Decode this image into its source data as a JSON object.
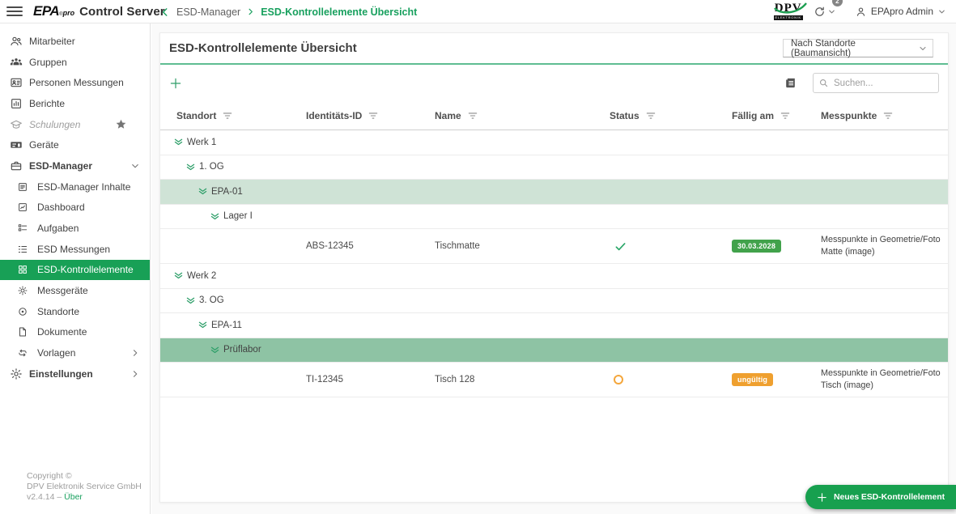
{
  "header": {
    "menu_icon": "hamburger-icon",
    "logo": {
      "text": "EPA",
      "mark": "®",
      "sub": "pro"
    },
    "app_title": "Control Server",
    "breadcrumb": {
      "back_icon": "chevron-left-icon",
      "items": [
        {
          "label": "ESD-Manager",
          "active": false
        },
        {
          "label": "ESD-Kontrollelemente Übersicht",
          "active": true
        }
      ]
    },
    "brand_logo": {
      "text": "DPV",
      "sub": "ELEKTRONIK"
    },
    "sync_icon": "sync-icon",
    "notifications_count": "2",
    "user_icon": "person-icon",
    "user_name": "EPApro Admin"
  },
  "sidebar": {
    "items": [
      {
        "label": "Mitarbeiter",
        "icon": "people-icon",
        "level": 0
      },
      {
        "label": "Gruppen",
        "icon": "groups-icon",
        "level": 0
      },
      {
        "label": "Personen Messungen",
        "icon": "person-card-icon",
        "level": 0
      },
      {
        "label": "Berichte",
        "icon": "report-chart-icon",
        "level": 0
      },
      {
        "label": "Schulungen",
        "icon": "graduation-cap-icon",
        "level": 0,
        "disabled": true,
        "trailing": "star-icon"
      },
      {
        "label": "Geräte",
        "icon": "device-icon",
        "level": 0
      },
      {
        "label": "ESD-Manager",
        "icon": "briefcase-icon",
        "level": 0,
        "bold": true,
        "trailing": "chevron-down-icon"
      },
      {
        "label": "ESD-Manager Inhalte",
        "icon": "article-icon",
        "level": 1
      },
      {
        "label": "Dashboard",
        "icon": "dashboard-icon",
        "level": 1
      },
      {
        "label": "Aufgaben",
        "icon": "tasks-icon",
        "level": 1
      },
      {
        "label": "ESD Messungen",
        "icon": "numbered-list-icon",
        "level": 1
      },
      {
        "label": "ESD-Kontrollelemente",
        "icon": "grid-icon",
        "level": 1,
        "selected": true
      },
      {
        "label": "Messgeräte",
        "icon": "gauge-icon",
        "level": 1
      },
      {
        "label": "Standorte",
        "icon": "target-icon",
        "level": 1
      },
      {
        "label": "Dokumente",
        "icon": "document-icon",
        "level": 1
      },
      {
        "label": "Vorlagen",
        "icon": "repeat-icon",
        "level": 1,
        "trailing": "chevron-right-icon"
      },
      {
        "label": "Einstellungen",
        "icon": "gear-icon",
        "level": 0,
        "bold": true,
        "trailing": "chevron-right-icon"
      }
    ],
    "footer": {
      "line1": "Copyright ©",
      "line2": "DPV Elektronik Service GmbH",
      "version": "v2.4.14",
      "separator": "–",
      "about_link": "Über"
    }
  },
  "main": {
    "title": "ESD-Kontrollelemente Übersicht",
    "view_select": {
      "value": "Nach Standorte (Baumansicht)",
      "icon": "chevron-down-icon"
    },
    "toolbar": {
      "add_icon": "plus-icon",
      "view_icon": "newspaper-icon",
      "search_icon": "search-icon",
      "search_placeholder": "Suchen...",
      "search_value": ""
    },
    "table": {
      "columns": [
        "Standort",
        "Identitäts-ID",
        "Name",
        "Status",
        "Fällig am",
        "Messpunkte"
      ],
      "column_filter_icon": "filter-lines-icon",
      "tree_collapse_icon": "double-chevron-down-icon",
      "status_icons": {
        "valid": "check-icon",
        "invalid": "ring-icon"
      },
      "rows": [
        {
          "type": "tree",
          "label": "Werk 1",
          "depth": 0
        },
        {
          "type": "tree",
          "label": "1. OG",
          "depth": 1
        },
        {
          "type": "tree",
          "label": "EPA-01",
          "depth": 2,
          "highlight": "light"
        },
        {
          "type": "tree",
          "label": "Lager I",
          "depth": 3
        },
        {
          "type": "data",
          "identity_id": "ABS-12345",
          "name": "Tischmatte",
          "status": "valid",
          "due": {
            "text": "30.03.2028",
            "tone": "green"
          },
          "messpunkte_lines": [
            "Messpunkte in Geometrie/Foto",
            "Matte (image)"
          ]
        },
        {
          "type": "tree",
          "label": "Werk 2",
          "depth": 0
        },
        {
          "type": "tree",
          "label": "3. OG",
          "depth": 1
        },
        {
          "type": "tree",
          "label": "EPA-11",
          "depth": 2
        },
        {
          "type": "tree",
          "label": "Prüflabor",
          "depth": 3,
          "highlight": "dark"
        },
        {
          "type": "data",
          "identity_id": "TI-12345",
          "name": "Tisch 128",
          "status": "invalid",
          "due": {
            "text": "ungültig",
            "tone": "orange"
          },
          "messpunkte_lines": [
            "Messpunkte in Geometrie/Foto",
            "Tisch (image)"
          ]
        }
      ]
    },
    "fab": {
      "icon": "plus-icon",
      "label": "Neues ESD-Kontrollelement"
    }
  },
  "colors": {
    "accent_green": "#18A056",
    "breadcrumb_green": "#18A05E",
    "header_underline": "#5FBD92",
    "row_highlight_light": "#CFE3D6",
    "row_highlight_dark": "#8EC3A4",
    "badge_valid": "#41A24B",
    "badge_invalid": "#EFA02F",
    "status_check": "#27A566",
    "status_ring": "#F4A63B",
    "fab_green": "#17A04F"
  }
}
